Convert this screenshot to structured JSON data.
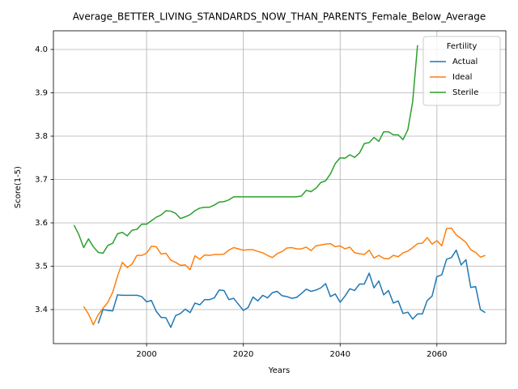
{
  "chart_data": {
    "type": "line",
    "title": "Average_BETTER_LIVING_STANDARDS_NOW_THAN_PARENTS_Female_Below_Average",
    "x_label": "Years",
    "y_label": "Score(1-5)",
    "legend_title": "Fertility",
    "legend_loc": "upper right",
    "grid": true,
    "xlim": [
      1980.75,
      2074.25
    ],
    "xticks": [
      2000,
      2020,
      2040,
      2060
    ],
    "ylim": [
      3.3215,
      4.043
    ],
    "yticks": [
      3.4,
      3.5,
      3.6,
      3.7,
      3.8,
      3.9,
      {
        "value": 4,
        "label": "4.0"
      }
    ],
    "x": [
      1985,
      1986,
      1987,
      1988,
      1989,
      1990,
      1991,
      1992,
      1993,
      1994,
      1995,
      1996,
      1997,
      1998,
      1999,
      2000,
      2001,
      2002,
      2003,
      2004,
      2005,
      2006,
      2007,
      2008,
      2009,
      2010,
      2011,
      2012,
      2013,
      2014,
      2015,
      2016,
      2017,
      2018,
      2019,
      2020,
      2021,
      2022,
      2023,
      2024,
      2025,
      2026,
      2027,
      2028,
      2029,
      2030,
      2031,
      2032,
      2033,
      2034,
      2035,
      2036,
      2037,
      2038,
      2039,
      2040,
      2041,
      2042,
      2043,
      2044,
      2045,
      2046,
      2047,
      2048,
      2049,
      2050,
      2051,
      2052,
      2053,
      2054,
      2055,
      2056,
      2057,
      2058,
      2059,
      2060,
      2061,
      2062,
      2063,
      2064,
      2065,
      2066,
      2067,
      2068,
      2069,
      2070
    ],
    "series": [
      {
        "name": "Actual",
        "color": "#1f77b4",
        "values": [
          null,
          null,
          null,
          null,
          null,
          3.368,
          3.4,
          3.398,
          3.397,
          3.434,
          3.433,
          3.433,
          3.433,
          3.433,
          3.43,
          3.418,
          3.421,
          3.396,
          3.382,
          3.381,
          3.359,
          3.386,
          3.391,
          3.401,
          3.393,
          3.415,
          3.411,
          3.423,
          3.423,
          3.427,
          3.445,
          3.444,
          3.423,
          3.426,
          3.412,
          3.398,
          3.405,
          3.429,
          3.42,
          3.433,
          3.427,
          3.439,
          3.442,
          3.432,
          3.43,
          3.426,
          3.428,
          3.437,
          3.447,
          3.442,
          3.445,
          3.45,
          3.46,
          3.43,
          3.436,
          3.417,
          3.431,
          3.448,
          3.444,
          3.459,
          3.459,
          3.484,
          3.45,
          3.466,
          3.434,
          3.444,
          3.415,
          3.42,
          3.391,
          3.394,
          3.378,
          3.39,
          3.39,
          3.421,
          3.431,
          3.476,
          3.48,
          3.516,
          3.52,
          3.537,
          3.503,
          3.515,
          3.451,
          3.453,
          3.4,
          3.393
        ]
      },
      {
        "name": "Ideal",
        "color": "#ff7f0e",
        "values": [
          null,
          null,
          3.407,
          3.39,
          3.365,
          3.388,
          3.403,
          3.417,
          3.44,
          3.477,
          3.509,
          3.497,
          3.505,
          3.525,
          3.525,
          3.53,
          3.546,
          3.545,
          3.528,
          3.53,
          3.514,
          3.509,
          3.502,
          3.503,
          3.492,
          3.524,
          3.516,
          3.526,
          3.525,
          3.527,
          3.527,
          3.528,
          3.537,
          3.543,
          3.54,
          3.537,
          3.538,
          3.538,
          3.534,
          3.531,
          3.525,
          3.52,
          3.529,
          3.534,
          3.542,
          3.543,
          3.54,
          3.54,
          3.544,
          3.536,
          3.547,
          3.549,
          3.551,
          3.552,
          3.545,
          3.547,
          3.54,
          3.544,
          3.531,
          3.529,
          3.527,
          3.537,
          3.519,
          3.525,
          3.518,
          3.517,
          3.525,
          3.522,
          3.531,
          3.535,
          3.543,
          3.552,
          3.553,
          3.566,
          3.551,
          3.559,
          3.547,
          3.587,
          3.588,
          3.572,
          3.564,
          3.555,
          3.538,
          3.532,
          3.521,
          3.525
        ]
      },
      {
        "name": "Sterile",
        "color": "#2ca02c",
        "values": [
          3.595,
          3.573,
          3.543,
          3.563,
          3.545,
          3.532,
          3.53,
          3.548,
          3.553,
          3.575,
          3.578,
          3.57,
          3.583,
          3.585,
          3.597,
          3.597,
          3.605,
          3.613,
          3.618,
          3.628,
          3.627,
          3.622,
          3.61,
          3.614,
          3.619,
          3.628,
          3.634,
          3.636,
          3.636,
          3.641,
          3.648,
          3.649,
          3.653,
          3.66,
          3.66,
          3.66,
          3.66,
          3.66,
          3.66,
          3.66,
          3.66,
          3.66,
          3.66,
          3.66,
          3.66,
          3.66,
          3.66,
          3.662,
          3.675,
          3.672,
          3.68,
          3.693,
          3.697,
          3.713,
          3.737,
          3.75,
          3.749,
          3.757,
          3.751,
          3.761,
          3.783,
          3.785,
          3.797,
          3.788,
          3.81,
          3.81,
          3.803,
          3.803,
          3.792,
          3.815,
          3.88,
          4.01,
          null,
          null,
          null,
          null,
          null,
          null,
          null,
          null,
          null,
          null,
          null,
          null,
          null,
          null
        ]
      }
    ]
  }
}
